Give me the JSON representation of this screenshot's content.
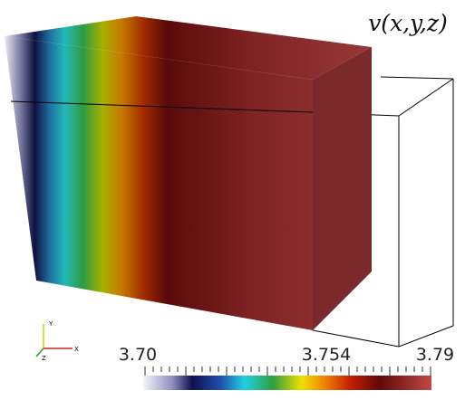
{
  "title": "v(x,y,z)",
  "colorbar": {
    "labels": [
      "3.70",
      "3.754",
      "3.79"
    ]
  },
  "axes_triad": {
    "x": "X",
    "y": "Y",
    "z": "Z"
  }
}
